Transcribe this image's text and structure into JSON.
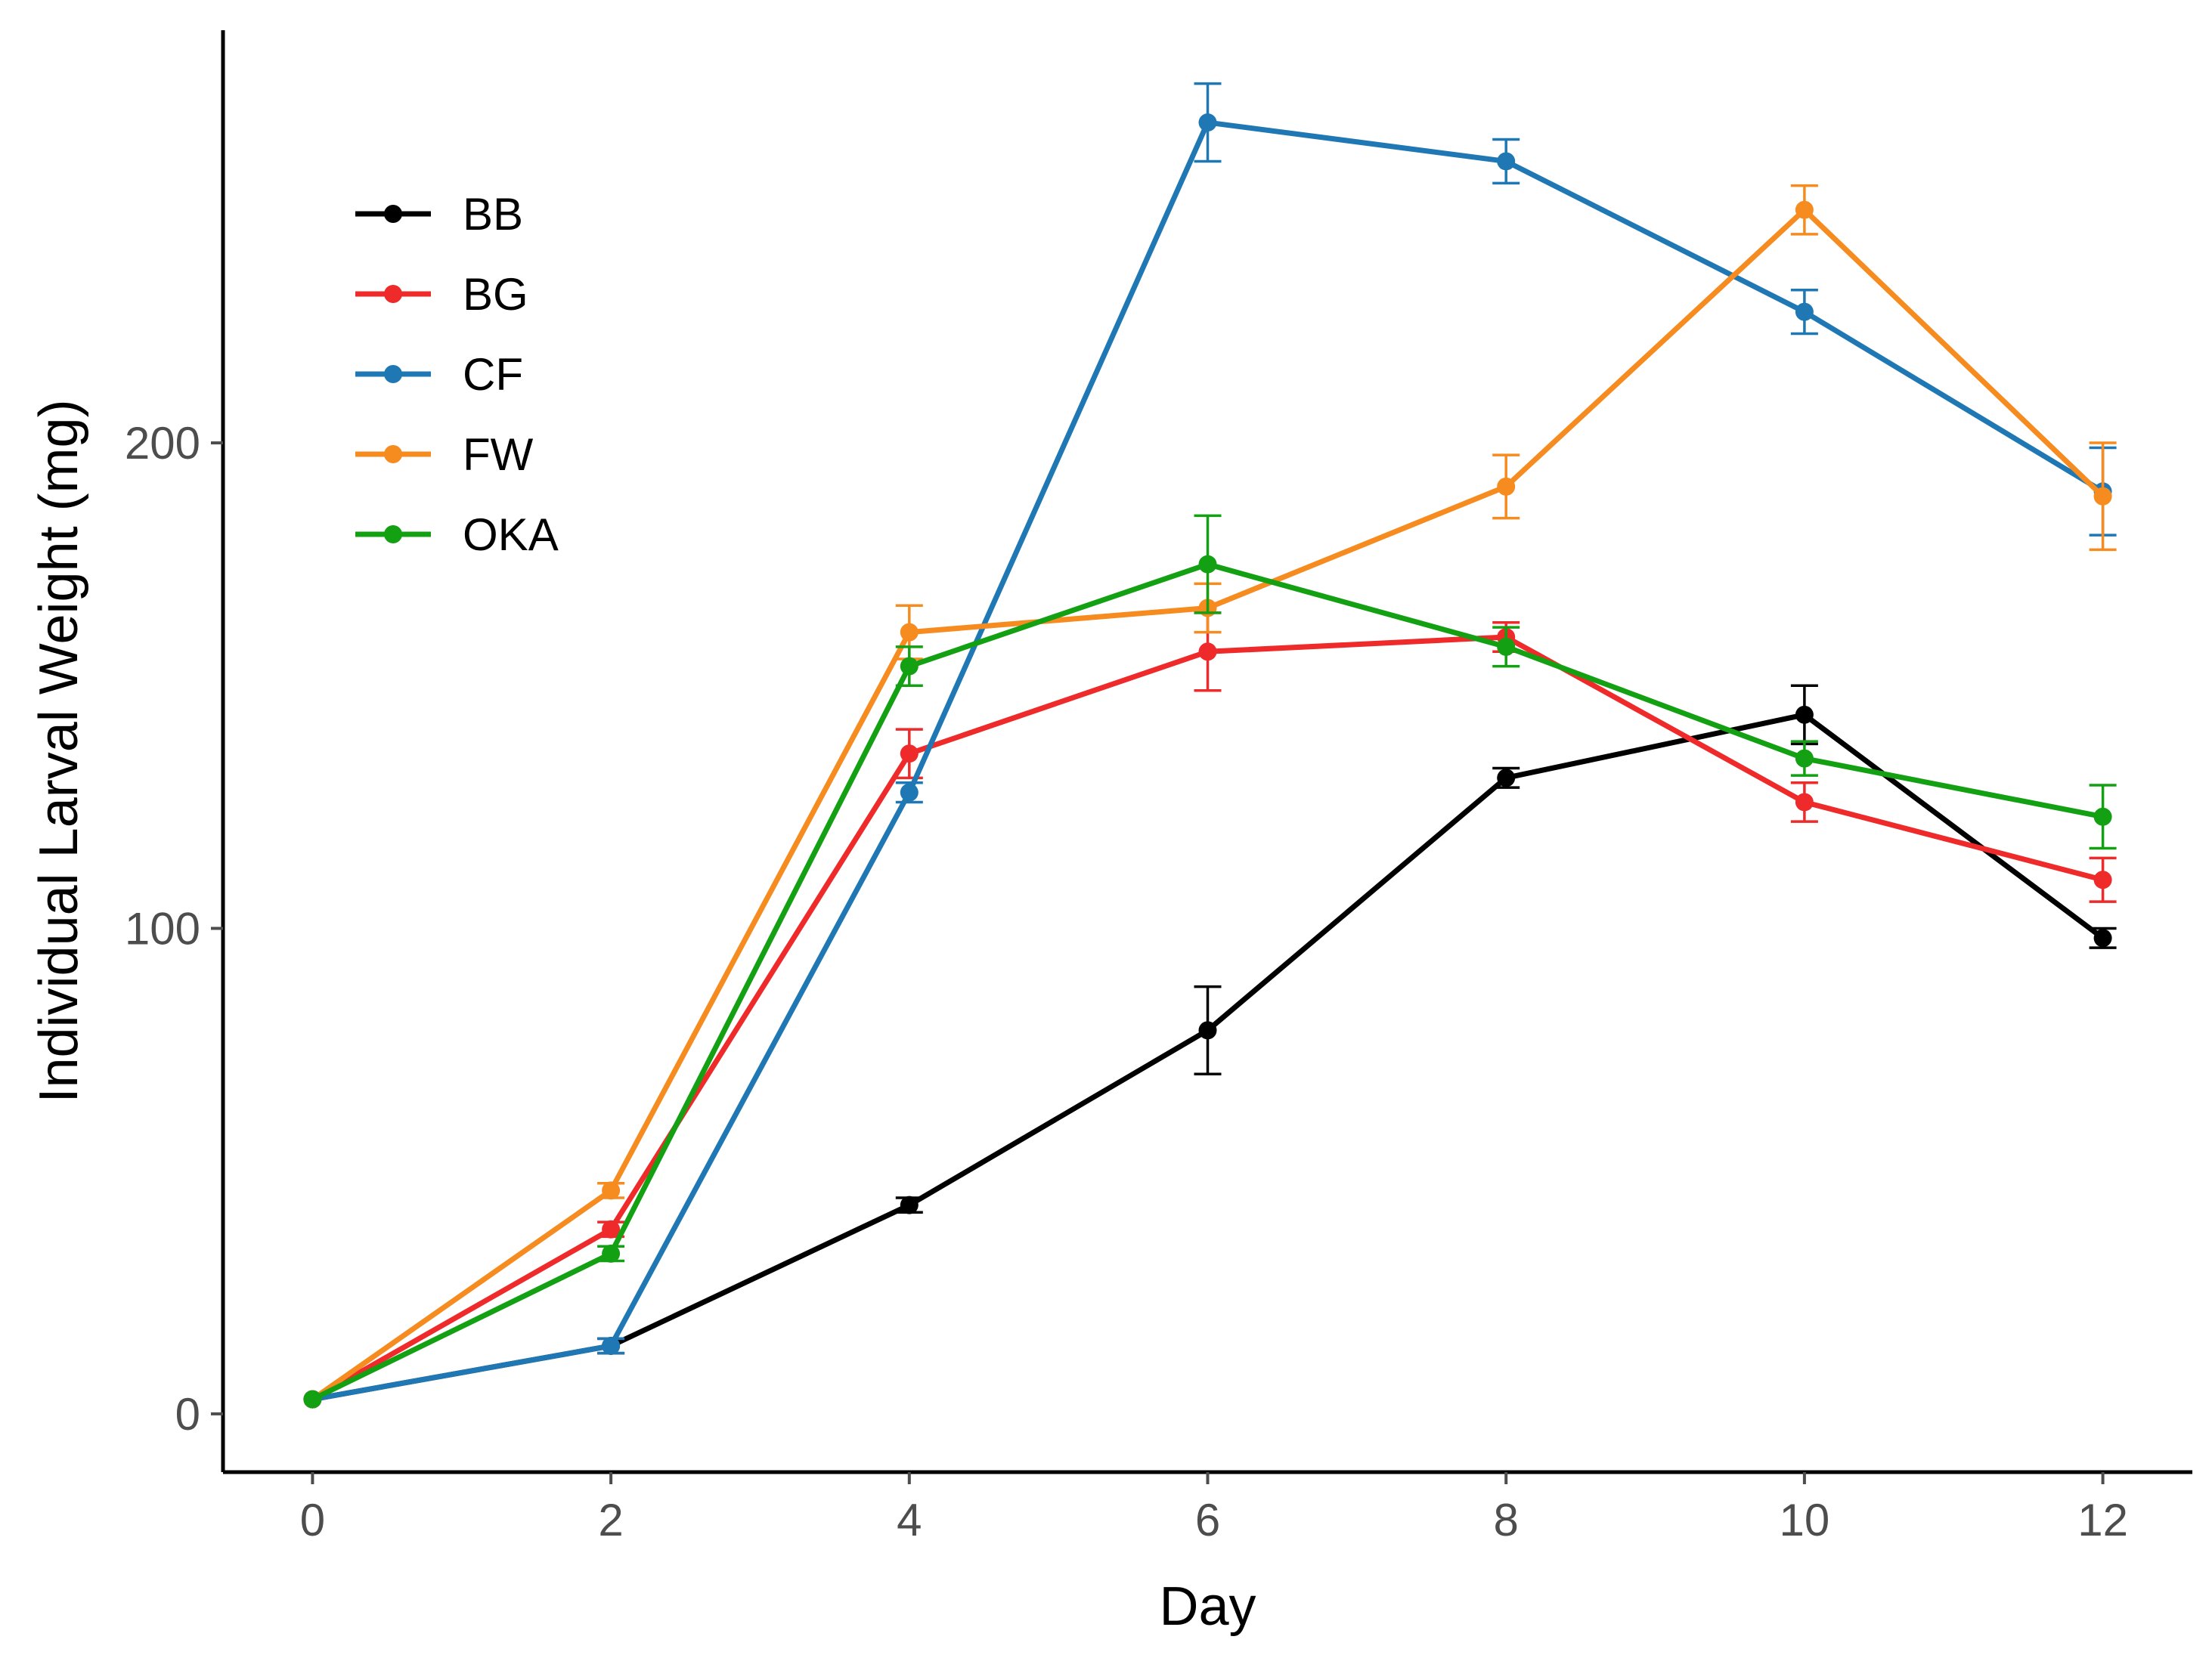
{
  "chart_data": {
    "type": "line",
    "title": "",
    "xlabel": "Day",
    "ylabel": "Individual Larval Weight (mg)",
    "x": [
      0,
      2,
      4,
      6,
      8,
      10,
      12
    ],
    "xticks": [
      0,
      2,
      4,
      6,
      8,
      10,
      12
    ],
    "yticks": [
      0,
      100,
      200
    ],
    "xlim": [
      -0.6,
      12.6
    ],
    "ylim": [
      -12,
      285
    ],
    "grid": false,
    "legend_position": "top-left",
    "series": [
      {
        "name": "BB",
        "color": "#000000",
        "values": [
          3,
          14,
          43,
          79,
          131,
          144,
          98
        ],
        "errors": [
          0,
          1.5,
          1.5,
          9,
          2,
          6,
          2
        ]
      },
      {
        "name": "BG",
        "color": "#ee2a2a",
        "values": [
          3,
          38,
          136,
          157,
          160,
          126,
          110
        ],
        "errors": [
          0,
          1.5,
          5,
          8,
          3,
          4,
          4.5
        ]
      },
      {
        "name": "CF",
        "color": "#1f78b4",
        "values": [
          3,
          14,
          128,
          266,
          258,
          227,
          190
        ],
        "errors": [
          0,
          1.5,
          2,
          8,
          4.5,
          4.5,
          9
        ]
      },
      {
        "name": "FW",
        "color": "#f68b1f",
        "values": [
          3,
          46,
          161,
          166,
          191,
          248,
          189
        ],
        "errors": [
          0,
          1.5,
          5.5,
          5,
          6.5,
          5,
          11
        ]
      },
      {
        "name": "OKA",
        "color": "#13a013",
        "values": [
          3,
          33,
          154,
          175,
          158,
          135,
          123
        ],
        "errors": [
          0,
          1.5,
          4,
          10,
          4,
          3.5,
          6.5
        ]
      }
    ]
  }
}
